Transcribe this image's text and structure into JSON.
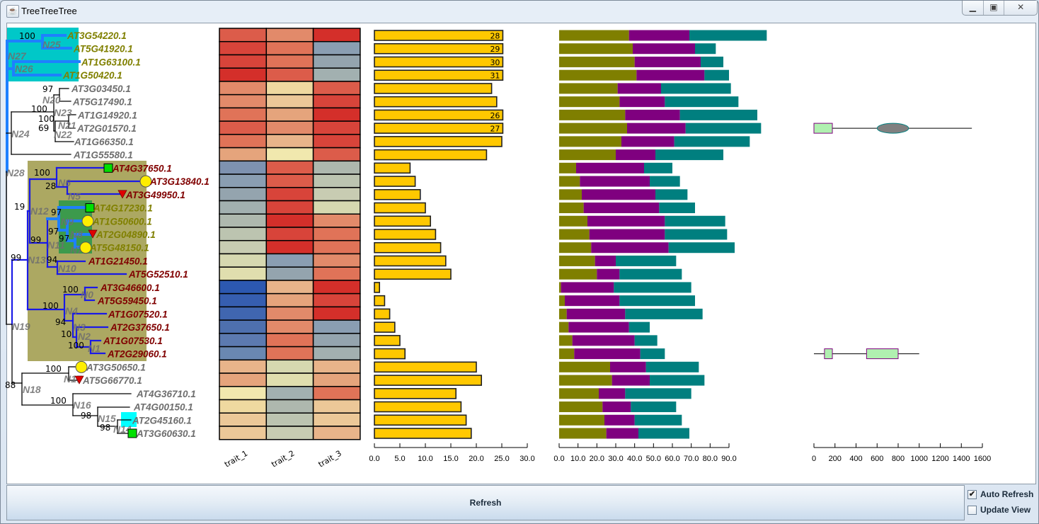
{
  "window": {
    "title": "TreeTreeTree",
    "icon": "java-cup-icon",
    "buttons": [
      "minimize",
      "maximize",
      "close"
    ]
  },
  "tree": {
    "leaves": [
      {
        "name": "AT3G54220.1",
        "group": "olive"
      },
      {
        "name": "AT5G41920.1",
        "group": "olive"
      },
      {
        "name": "AT1G63100.1",
        "group": "olive"
      },
      {
        "name": "AT1G50420.1",
        "group": "olive"
      },
      {
        "name": "AT3G03450.1",
        "group": "gray"
      },
      {
        "name": "AT5G17490.1",
        "group": "gray"
      },
      {
        "name": "AT1G14920.1",
        "group": "gray"
      },
      {
        "name": "AT2G01570.1",
        "group": "gray"
      },
      {
        "name": "AT1G66350.1",
        "group": "gray"
      },
      {
        "name": "AT1G55580.1",
        "group": "gray"
      },
      {
        "name": "AT4G37650.1",
        "group": "red",
        "marker": "square"
      },
      {
        "name": "AT3G13840.1",
        "group": "red",
        "marker": "circle"
      },
      {
        "name": "AT3G49950.1",
        "group": "red",
        "marker": "triangle"
      },
      {
        "name": "AT4G17230.1",
        "group": "olive",
        "marker": "square"
      },
      {
        "name": "AT1G50600.1",
        "group": "olive",
        "marker": "circle"
      },
      {
        "name": "AT2G04890.1",
        "group": "olive",
        "marker": "triangle"
      },
      {
        "name": "AT5G48150.1",
        "group": "olive",
        "marker": "circle"
      },
      {
        "name": "AT1G21450.1",
        "group": "red"
      },
      {
        "name": "AT5G52510.1",
        "group": "red"
      },
      {
        "name": "AT3G46600.1",
        "group": "red"
      },
      {
        "name": "AT5G59450.1",
        "group": "red"
      },
      {
        "name": "AT1G07520.1",
        "group": "red"
      },
      {
        "name": "AT2G37650.1",
        "group": "red"
      },
      {
        "name": "AT1G07530.1",
        "group": "red"
      },
      {
        "name": "AT2G29060.1",
        "group": "red"
      },
      {
        "name": "AT3G50650.1",
        "group": "gray",
        "marker": "circle"
      },
      {
        "name": "AT5G66770.1",
        "group": "gray",
        "marker": "triangle"
      },
      {
        "name": "AT4G36710.1",
        "group": "gray"
      },
      {
        "name": "AT4G00150.1",
        "group": "gray"
      },
      {
        "name": "AT2G45160.1",
        "group": "gray",
        "highlight": "cyan"
      },
      {
        "name": "AT3G60630.1",
        "group": "gray",
        "marker": "square"
      }
    ],
    "nodes": [
      "N25",
      "N27",
      "N26",
      "N20",
      "N23",
      "N21",
      "N22",
      "N24",
      "N28",
      "N6",
      "N5",
      "N12",
      "N9",
      "N8",
      "N7",
      "N11",
      "N13",
      "N10",
      "N0",
      "N4",
      "N3",
      "N2",
      "N1",
      "N19",
      "N17",
      "N18",
      "N16",
      "N15",
      "N14"
    ],
    "bootstrap": [
      "100",
      "97",
      "100",
      "100",
      "69",
      "100",
      "28",
      "19",
      "97",
      "97",
      "97",
      "99",
      "94",
      "99",
      "100",
      "100",
      "94",
      "10",
      "100",
      "100",
      "88",
      "100",
      "98",
      "98"
    ],
    "colors": {
      "olive": "#808000",
      "gray": "#6e6e6e",
      "red": "#800000",
      "node_label": "#6e6e6e",
      "branch_black": "#000000",
      "branch_blue": "#1a1ae6",
      "branch_light_blue": "#1e80ff",
      "clade_cyan": "#00c8c8",
      "clade_olive": "#aca862",
      "clade_green": "#3c9a4c",
      "marker_square": "#00e000",
      "marker_circle": "#ffee00",
      "marker_triangle": "#e00000"
    }
  },
  "chart_data": [
    {
      "type": "heatmap",
      "columns": [
        "trait_1",
        "trait_2",
        "trait_3"
      ],
      "colors": [
        [
          "#dc5c4a",
          "#e28a6a",
          "#d42f2a"
        ],
        [
          "#d8443a",
          "#e07358",
          "#8a9eb2"
        ],
        [
          "#d8443a",
          "#e07358",
          "#94a4ae"
        ],
        [
          "#d42f2a",
          "#dc5c4a",
          "#a2b0b0"
        ],
        [
          "#e28a6a",
          "#efd9a0",
          "#dc5c4a"
        ],
        [
          "#e28a6a",
          "#ecc898",
          "#d8443a"
        ],
        [
          "#e07358",
          "#e5a47c",
          "#d42f2a"
        ],
        [
          "#dc5c4a",
          "#e28a6a",
          "#d8443a"
        ],
        [
          "#e07358",
          "#e8b48a",
          "#d8443a"
        ],
        [
          "#e5a47c",
          "#f1e8ae",
          "#dc5c4a"
        ],
        [
          "#7e92b0",
          "#dc5c4a",
          "#aeb8ae"
        ],
        [
          "#8a9eb2",
          "#dc5c4a",
          "#bcc4b0"
        ],
        [
          "#94a4ae",
          "#d8443a",
          "#c8ccb2"
        ],
        [
          "#a2b0b0",
          "#d8443a",
          "#d6d8b0"
        ],
        [
          "#aeb8ae",
          "#d42f2a",
          "#e28a6a"
        ],
        [
          "#bcc4b0",
          "#d8443a",
          "#e07358"
        ],
        [
          "#c8ccb2",
          "#d42f2a",
          "#e07358"
        ],
        [
          "#d6d8b0",
          "#8a9eb2",
          "#e28a6a"
        ],
        [
          "#e0deae",
          "#94a4ae",
          "#e07358"
        ],
        [
          "#2c58b0",
          "#e8b48a",
          "#d42f2a"
        ],
        [
          "#365eb0",
          "#e5a47c",
          "#d8443a"
        ],
        [
          "#4066b0",
          "#e28a6a",
          "#d42f2a"
        ],
        [
          "#4e70ae",
          "#e28a6a",
          "#8a9eb2"
        ],
        [
          "#5c7ab0",
          "#e07358",
          "#94a4ae"
        ],
        [
          "#6a88b2",
          "#e07358",
          "#a2b0b0"
        ],
        [
          "#e8b48a",
          "#d6d8b0",
          "#e8b48a"
        ],
        [
          "#e5a47c",
          "#e0deae",
          "#e5a47c"
        ],
        [
          "#f1e8ae",
          "#a2b0b0",
          "#e07358"
        ],
        [
          "#efd9a0",
          "#aeb8ae",
          "#ecc898"
        ],
        [
          "#ecc898",
          "#bcc4b0",
          "#ecc898"
        ],
        [
          "#ecc898",
          "#c8ccb2",
          "#e8b48a"
        ]
      ]
    },
    {
      "type": "bar",
      "values": [
        28,
        29,
        30,
        31,
        23,
        24,
        26,
        27,
        25,
        22,
        7,
        8,
        9,
        10,
        11,
        12,
        13,
        14,
        15,
        1,
        2,
        3,
        4,
        5,
        6,
        20,
        21,
        16,
        17,
        18,
        19
      ],
      "xlim": [
        0,
        30
      ],
      "ticks": [
        "0.0",
        "5.0",
        "10.0",
        "15.0",
        "20.0",
        "25.0",
        "30.0"
      ],
      "bar_color": "#ffc800"
    },
    {
      "type": "bar",
      "stacked": true,
      "values": [
        [
          37,
          32,
          41
        ],
        [
          39,
          33,
          11
        ],
        [
          40,
          35,
          12
        ],
        [
          41,
          36,
          13
        ],
        [
          31,
          23,
          37
        ],
        [
          32,
          24,
          39
        ],
        [
          35,
          29,
          41
        ],
        [
          36,
          31,
          40
        ],
        [
          33,
          28,
          40
        ],
        [
          30,
          21,
          36
        ],
        [
          9,
          36,
          15
        ],
        [
          11,
          37,
          16
        ],
        [
          12,
          39,
          17
        ],
        [
          13,
          40,
          19
        ],
        [
          15,
          41,
          32
        ],
        [
          16,
          40,
          33
        ],
        [
          17,
          41,
          35
        ],
        [
          19,
          11,
          32
        ],
        [
          20,
          12,
          33
        ],
        [
          1,
          28,
          41
        ],
        [
          3,
          29,
          40
        ],
        [
          4,
          31,
          41
        ],
        [
          5,
          32,
          11
        ],
        [
          7,
          33,
          12
        ],
        [
          8,
          35,
          13
        ],
        [
          27,
          19,
          28
        ],
        [
          28,
          20,
          29
        ],
        [
          21,
          14,
          35
        ],
        [
          23,
          15,
          24
        ],
        [
          24,
          16,
          25
        ],
        [
          25,
          17,
          27
        ]
      ],
      "xlim": [
        0,
        90
      ],
      "ticks": [
        "0.0",
        "10.0",
        "20.0",
        "30.0",
        "40.0",
        "50.0",
        "60.0",
        "70.0",
        "80.0",
        "90.0"
      ],
      "segment_colors": [
        "#7f7f00",
        "#7f007f",
        "#007f7f"
      ]
    },
    {
      "type": "domains",
      "xlim": [
        0,
        1600
      ],
      "ticks": [
        "0",
        "200",
        "400",
        "600",
        "800",
        "1000",
        "1200",
        "1400",
        "1600"
      ],
      "rows": [
        {
          "leaf": "AT2G01570.1",
          "length": 1500,
          "domains": [
            {
              "shape": "rect",
              "start": 0,
              "end": 175
            },
            {
              "shape": "ellipse",
              "start": 600,
              "end": 900
            }
          ]
        },
        {
          "leaf": "AT2G29060.1",
          "length": 1000,
          "domains": [
            {
              "shape": "rect",
              "start": 100,
              "end": 175
            },
            {
              "shape": "rect",
              "start": 500,
              "end": 800
            }
          ]
        }
      ],
      "colors": {
        "rect_fill": "#b0f0b0",
        "rect_stroke": "#800080",
        "ellipse_fill": "#808080",
        "ellipse_stroke": "#008080"
      }
    }
  ],
  "controls": {
    "refresh_label": "Refresh",
    "auto_refresh": {
      "label": "Auto Refresh",
      "checked": true,
      "mark": "✔"
    },
    "update_view": {
      "label": "Update View",
      "checked": false
    }
  }
}
